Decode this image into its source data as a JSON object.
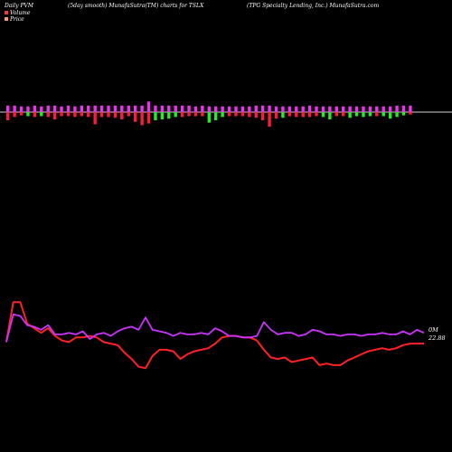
{
  "header": {
    "left": "Daily PVM",
    "center": "(5day smooth) MunafaSutra(TM) charts for TSLX",
    "right": "(TPG Specialty Lending, Inc.) MunafaSutra.com"
  },
  "legend": [
    {
      "label": "Volume",
      "color": "#ff3333"
    },
    {
      "label": "Price",
      "color": "#ff9966"
    }
  ],
  "chart_data": [
    {
      "type": "bar",
      "name": "PVM histogram",
      "bars": [
        {
          "up": 0.8,
          "down": 1.0,
          "color": "#ff1a3c"
        },
        {
          "up": 0.8,
          "down": 0.6,
          "color": "#ff1a3c"
        },
        {
          "up": 0.7,
          "down": 0.4,
          "color": "#ff1a3c"
        },
        {
          "up": 0.7,
          "down": 0.5,
          "color": "#22ee22"
        },
        {
          "up": 0.8,
          "down": 0.6,
          "color": "#ff1a3c"
        },
        {
          "up": 0.7,
          "down": 0.5,
          "color": "#22ee22"
        },
        {
          "up": 0.8,
          "down": 0.6,
          "color": "#ff1a3c"
        },
        {
          "up": 0.8,
          "down": 0.9,
          "color": "#ff1a3c"
        },
        {
          "up": 0.7,
          "down": 0.5,
          "color": "#ff1a3c"
        },
        {
          "up": 0.8,
          "down": 0.5,
          "color": "#ff1a3c"
        },
        {
          "up": 0.7,
          "down": 0.6,
          "color": "#ff1a3c"
        },
        {
          "up": 0.8,
          "down": 0.5,
          "color": "#ff1a3c"
        },
        {
          "up": 0.8,
          "down": 0.6,
          "color": "#ff1a3c"
        },
        {
          "up": 0.8,
          "down": 1.5,
          "color": "#ff1a3c"
        },
        {
          "up": 0.8,
          "down": 0.6,
          "color": "#ff1a3c"
        },
        {
          "up": 0.8,
          "down": 0.6,
          "color": "#ff1a3c"
        },
        {
          "up": 0.8,
          "down": 0.7,
          "color": "#ff1a3c"
        },
        {
          "up": 0.8,
          "down": 0.9,
          "color": "#ff1a3c"
        },
        {
          "up": 0.8,
          "down": 0.5,
          "color": "#ff1a3c"
        },
        {
          "up": 0.8,
          "down": 1.2,
          "color": "#ff1a3c"
        },
        {
          "up": 0.8,
          "down": 1.6,
          "color": "#ff1a3c"
        },
        {
          "up": 1.3,
          "down": 1.4,
          "color": "#ff1a3c"
        },
        {
          "up": 0.8,
          "down": 1.0,
          "color": "#22ee22"
        },
        {
          "up": 0.8,
          "down": 0.9,
          "color": "#22ee22"
        },
        {
          "up": 0.8,
          "down": 0.8,
          "color": "#22ee22"
        },
        {
          "up": 0.8,
          "down": 0.6,
          "color": "#22ee22"
        },
        {
          "up": 0.8,
          "down": 0.6,
          "color": "#ff1a3c"
        },
        {
          "up": 0.8,
          "down": 0.5,
          "color": "#ff1a3c"
        },
        {
          "up": 0.7,
          "down": 0.5,
          "color": "#ff1a3c"
        },
        {
          "up": 0.8,
          "down": 0.5,
          "color": "#ff1a3c"
        },
        {
          "up": 0.7,
          "down": 1.3,
          "color": "#22ee22"
        },
        {
          "up": 0.7,
          "down": 1.0,
          "color": "#22ee22"
        },
        {
          "up": 0.7,
          "down": 0.6,
          "color": "#22ee22"
        },
        {
          "up": 0.7,
          "down": 0.5,
          "color": "#ff1a3c"
        },
        {
          "up": 0.7,
          "down": 0.5,
          "color": "#ff1a3c"
        },
        {
          "up": 0.7,
          "down": 0.5,
          "color": "#ff1a3c"
        },
        {
          "up": 0.7,
          "down": 0.6,
          "color": "#ff1a3c"
        },
        {
          "up": 0.8,
          "down": 0.7,
          "color": "#ff1a3c"
        },
        {
          "up": 0.8,
          "down": 1.0,
          "color": "#ff1a3c"
        },
        {
          "up": 0.8,
          "down": 1.8,
          "color": "#ff1a3c"
        },
        {
          "up": 0.7,
          "down": 0.8,
          "color": "#ff1a3c"
        },
        {
          "up": 0.7,
          "down": 0.7,
          "color": "#22ee22"
        },
        {
          "up": 0.7,
          "down": 0.5,
          "color": "#ff1a3c"
        },
        {
          "up": 0.7,
          "down": 0.6,
          "color": "#ff1a3c"
        },
        {
          "up": 0.7,
          "down": 0.6,
          "color": "#ff1a3c"
        },
        {
          "up": 0.8,
          "down": 0.6,
          "color": "#ff1a3c"
        },
        {
          "up": 0.7,
          "down": 0.5,
          "color": "#ff1a3c"
        },
        {
          "up": 0.7,
          "down": 0.6,
          "color": "#22ee22"
        },
        {
          "up": 0.7,
          "down": 0.9,
          "color": "#22ee22"
        },
        {
          "up": 0.7,
          "down": 0.5,
          "color": "#ff1a3c"
        },
        {
          "up": 0.7,
          "down": 0.5,
          "color": "#ff1a3c"
        },
        {
          "up": 0.7,
          "down": 0.7,
          "color": "#22ee22"
        },
        {
          "up": 0.7,
          "down": 0.5,
          "color": "#22ee22"
        },
        {
          "up": 0.7,
          "down": 0.6,
          "color": "#22ee22"
        },
        {
          "up": 0.7,
          "down": 0.5,
          "color": "#22ee22"
        },
        {
          "up": 0.7,
          "down": 0.5,
          "color": "#ff1a3c"
        },
        {
          "up": 0.7,
          "down": 0.5,
          "color": "#22ee22"
        },
        {
          "up": 0.7,
          "down": 0.8,
          "color": "#22ee22"
        },
        {
          "up": 0.8,
          "down": 0.6,
          "color": "#22ee22"
        },
        {
          "up": 0.8,
          "down": 0.4,
          "color": "#22ee22"
        },
        {
          "up": 0.8,
          "down": 0.3,
          "color": "#ff1a3c"
        }
      ]
    },
    {
      "type": "line",
      "series": [
        {
          "color": "#ff2222",
          "values": [
            -0.2,
            2.4,
            2.4,
            1.0,
            0.7,
            0.4,
            0.7,
            0.2,
            -0.1,
            -0.2,
            0.1,
            0.1,
            0.2,
            0.1,
            -0.2,
            -0.3,
            -0.4,
            -0.9,
            -1.3,
            -1.8,
            -1.9,
            -1.1,
            -0.7,
            -0.7,
            -0.8,
            -1.3,
            -1.0,
            -0.8,
            -0.7,
            -0.6,
            -0.3,
            0.1,
            0.2,
            0.2,
            0.1,
            0.1,
            -0.1,
            -0.7,
            -1.2,
            -1.3,
            -1.2,
            -1.5,
            -1.4,
            -1.3,
            -1.2,
            -1.7,
            -1.6,
            -1.7,
            -1.7,
            -1.4,
            -1.2,
            -1.0,
            -0.8,
            -0.7,
            -0.6,
            -0.7,
            -0.6,
            -0.4,
            -0.3,
            -0.3,
            -0.3
          ],
          "end_label": "22.88"
        },
        {
          "color": "#cc33ff",
          "values": [
            -0.2,
            1.6,
            1.5,
            0.9,
            0.8,
            0.6,
            0.9,
            0.3,
            0.3,
            0.4,
            0.3,
            0.5,
            0.0,
            0.3,
            0.4,
            0.2,
            0.5,
            0.7,
            0.8,
            0.6,
            1.4,
            0.6,
            0.5,
            0.4,
            0.2,
            0.4,
            0.3,
            0.3,
            0.4,
            0.3,
            0.7,
            0.5,
            0.2,
            0.2,
            0.1,
            0.1,
            0.2,
            1.1,
            0.6,
            0.3,
            0.4,
            0.4,
            0.2,
            0.3,
            0.6,
            0.5,
            0.3,
            0.3,
            0.2,
            0.3,
            0.3,
            0.2,
            0.3,
            0.3,
            0.4,
            0.3,
            0.3,
            0.5,
            0.3,
            0.6,
            0.4
          ],
          "end_label": "0M"
        }
      ]
    }
  ]
}
